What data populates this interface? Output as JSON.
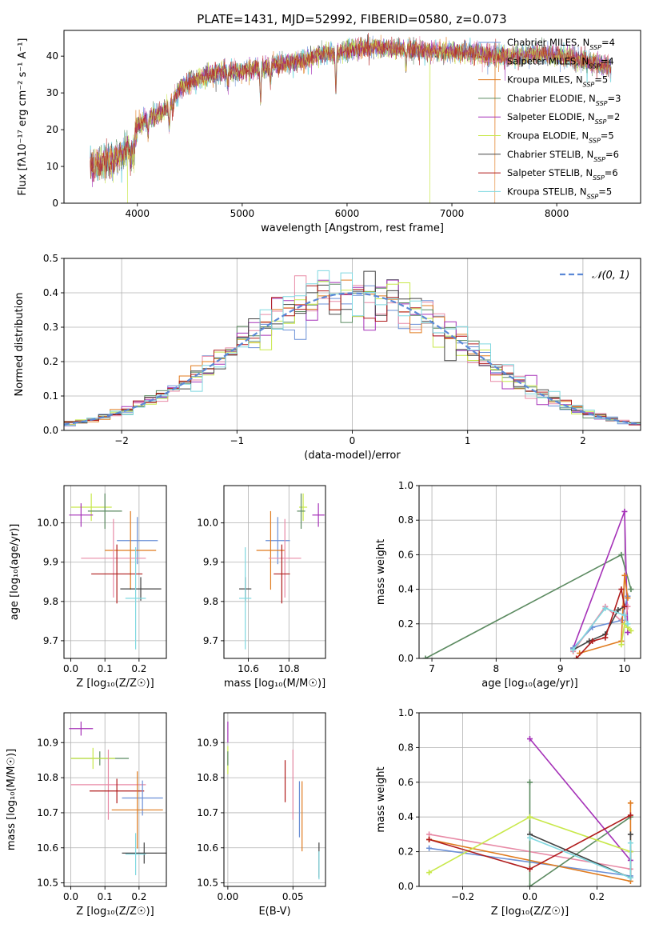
{
  "figure_title": "PLATE=1431, MJD=52992, FIBERID=0580, z=0.073",
  "colors": {
    "Chabrier MILES": "#6a8fd6",
    "Salpeter MILES": "#e88aa6",
    "Kroupa MILES": "#e07b1f",
    "Chabrier ELODIE": "#5b8a60",
    "Salpeter ELODIE": "#a531b8",
    "Kroupa ELODIE": "#c8e84a",
    "Chabrier STELIB": "#444444",
    "Salpeter STELIB": "#b01c1c",
    "Kroupa STELIB": "#7fd8e0",
    "normal_curve": "#5b88d6",
    "grid": "#b0b0b0"
  },
  "chart_data": [
    {
      "id": "spectrum",
      "type": "line",
      "title": "PLATE=1431, MJD=52992, FIBERID=0580, z=0.073",
      "xlabel": "wavelength [Angstrom, rest frame]",
      "ylabel": "Flux [fλ10⁻¹⁷ erg cm⁻² s⁻¹ A⁻¹]",
      "xlim": [
        3300,
        8800
      ],
      "ylim": [
        0,
        47
      ],
      "xticks": [
        4000,
        5000,
        6000,
        7000,
        8000
      ],
      "yticks": [
        0,
        10,
        20,
        30,
        40
      ],
      "grid": false,
      "legend_position": "top-right",
      "legend": [
        {
          "name": "Chabrier MILES",
          "nssp": "4"
        },
        {
          "name": "Salpeter MILES",
          "nssp": "4"
        },
        {
          "name": "Kroupa MILES",
          "nssp": "5"
        },
        {
          "name": "Chabrier ELODIE",
          "nssp": "3"
        },
        {
          "name": "Salpeter ELODIE",
          "nssp": "2"
        },
        {
          "name": "Kroupa ELODIE",
          "nssp": "5"
        },
        {
          "name": "Chabrier STELIB",
          "nssp": "6"
        },
        {
          "name": "Salpeter STELIB",
          "nssp": "6"
        },
        {
          "name": "Kroupa STELIB",
          "nssp": "5"
        }
      ],
      "continuum": [
        [
          3550,
          10
        ],
        [
          3700,
          11
        ],
        [
          3850,
          13
        ],
        [
          3950,
          15
        ],
        [
          4000,
          21
        ],
        [
          4100,
          23
        ],
        [
          4200,
          24
        ],
        [
          4300,
          26
        ],
        [
          4400,
          31
        ],
        [
          4500,
          33
        ],
        [
          4600,
          34
        ],
        [
          4700,
          35
        ],
        [
          4800,
          35.5
        ],
        [
          4900,
          36
        ],
        [
          5000,
          36
        ],
        [
          5100,
          36.5
        ],
        [
          5200,
          37
        ],
        [
          5300,
          37.5
        ],
        [
          5400,
          38
        ],
        [
          5500,
          38.5
        ],
        [
          5600,
          39
        ],
        [
          5700,
          40
        ],
        [
          5800,
          41
        ],
        [
          5900,
          41
        ],
        [
          6000,
          41.5
        ],
        [
          6100,
          42
        ],
        [
          6200,
          42
        ],
        [
          6300,
          42.5
        ],
        [
          6400,
          42
        ],
        [
          6500,
          42
        ],
        [
          6600,
          42
        ],
        [
          6700,
          41.5
        ],
        [
          6800,
          41.5
        ],
        [
          6900,
          41
        ],
        [
          7000,
          41
        ],
        [
          7100,
          41
        ],
        [
          7200,
          41
        ],
        [
          7300,
          40.5
        ],
        [
          7400,
          40
        ],
        [
          7500,
          40
        ],
        [
          7600,
          40
        ],
        [
          7700,
          40
        ],
        [
          7800,
          40.5
        ],
        [
          7900,
          40.5
        ],
        [
          8000,
          40
        ],
        [
          8100,
          40
        ],
        [
          8200,
          39
        ],
        [
          8300,
          38.5
        ],
        [
          8400,
          38
        ],
        [
          8500,
          37
        ]
      ],
      "dips": [
        [
          3934,
          4
        ],
        [
          3969,
          4
        ],
        [
          4102,
          3
        ],
        [
          4304,
          5
        ],
        [
          4341,
          3
        ],
        [
          4861,
          4
        ],
        [
          5175,
          9
        ],
        [
          5270,
          4
        ],
        [
          5893,
          10
        ],
        [
          6563,
          5
        ]
      ],
      "drops": [
        {
          "x": 3905,
          "to": 0,
          "series": "Kroupa ELODIE"
        },
        {
          "x": 6790,
          "to": 0,
          "series": "Kroupa ELODIE"
        },
        {
          "x": 7410,
          "to": 0,
          "series": "Kroupa MILES"
        }
      ],
      "spike": {
        "x": 6700,
        "to": 47
      }
    },
    {
      "id": "residuals",
      "type": "histogram",
      "xlabel": "(data-model)/error",
      "ylabel": "Normed distribution",
      "xlim": [
        -2.5,
        2.5
      ],
      "ylim": [
        0,
        0.5
      ],
      "xticks": [
        -2,
        -1,
        0,
        1,
        2
      ],
      "yticks": [
        0,
        0.1,
        0.2,
        0.3,
        0.4,
        0.5
      ],
      "bin_width": 0.1,
      "grid": true,
      "legend_position": "top-right",
      "legend": [
        {
          "name": "𝒩(0, 1)"
        }
      ],
      "reference_curve": {
        "type": "normal",
        "mean": 0,
        "std": 1
      }
    },
    {
      "id": "age_vs_Z",
      "type": "errorbar",
      "xlabel": "Z [log₁₀(Z/Z☉)]",
      "ylabel": "age [log₁₀(age/yr)]",
      "xlim": [
        -0.02,
        0.28
      ],
      "ylim": [
        9.655,
        10.095
      ],
      "xticks": [
        0.0,
        0.1,
        0.2
      ],
      "yticks": [
        9.7,
        9.8,
        9.9,
        10.0
      ],
      "grid": true,
      "points": [
        {
          "series": "Kroupa ELODIE",
          "x": 0.06,
          "xerr": 0.06,
          "y": 10.04,
          "yerr": 0.035
        },
        {
          "series": "Chabrier ELODIE",
          "x": 0.1,
          "xerr": 0.05,
          "y": 10.03,
          "yerr": 0.045
        },
        {
          "series": "Salpeter ELODIE",
          "x": 0.03,
          "xerr": 0.035,
          "y": 10.02,
          "yerr": 0.03
        },
        {
          "series": "Chabrier MILES",
          "x": 0.195,
          "xerr": 0.06,
          "y": 9.955,
          "yerr": 0.06
        },
        {
          "series": "Kroupa MILES",
          "x": 0.175,
          "xerr": 0.075,
          "y": 9.93,
          "yerr": 0.1
        },
        {
          "series": "Salpeter MILES",
          "x": 0.125,
          "xerr": 0.095,
          "y": 9.91,
          "yerr": 0.1
        },
        {
          "series": "Salpeter STELIB",
          "x": 0.135,
          "xerr": 0.075,
          "y": 9.87,
          "yerr": 0.075
        },
        {
          "series": "Chabrier STELIB",
          "x": 0.205,
          "xerr": 0.06,
          "y": 9.832,
          "yerr": 0.03
        },
        {
          "series": "Kroupa STELIB",
          "x": 0.19,
          "xerr": 0.03,
          "y": 9.808,
          "yerr": 0.13
        }
      ]
    },
    {
      "id": "age_vs_mass",
      "type": "errorbar",
      "xlabel": "mass [log₁₀(M/M☉)]",
      "xlim": [
        10.48,
        10.98
      ],
      "ylim": [
        9.655,
        10.095
      ],
      "xticks": [
        10.6,
        10.8
      ],
      "yticks": [
        9.7,
        9.8,
        9.9,
        10.0
      ],
      "grid": true,
      "points": [
        {
          "series": "Kroupa ELODIE",
          "x": 10.87,
          "xerr": 0.02,
          "y": 10.04,
          "yerr": 0.035
        },
        {
          "series": "Chabrier ELODIE",
          "x": 10.86,
          "xerr": 0.02,
          "y": 10.03,
          "yerr": 0.045
        },
        {
          "series": "Salpeter ELODIE",
          "x": 10.945,
          "xerr": 0.03,
          "y": 10.02,
          "yerr": 0.03
        },
        {
          "series": "Chabrier MILES",
          "x": 10.745,
          "xerr": 0.06,
          "y": 9.955,
          "yerr": 0.06
        },
        {
          "series": "Kroupa MILES",
          "x": 10.71,
          "xerr": 0.07,
          "y": 9.93,
          "yerr": 0.1
        },
        {
          "series": "Salpeter MILES",
          "x": 10.78,
          "xerr": 0.08,
          "y": 9.91,
          "yerr": 0.1
        },
        {
          "series": "Salpeter STELIB",
          "x": 10.765,
          "xerr": 0.04,
          "y": 9.87,
          "yerr": 0.075
        },
        {
          "series": "Chabrier STELIB",
          "x": 10.585,
          "xerr": 0.03,
          "y": 9.832,
          "yerr": 0.03
        },
        {
          "series": "Kroupa STELIB",
          "x": 10.585,
          "xerr": 0.03,
          "y": 9.808,
          "yerr": 0.13
        }
      ]
    },
    {
      "id": "weight_vs_age",
      "type": "line",
      "xlabel": "age [log₁₀(age/yr)]",
      "ylabel": "mass weight",
      "xlim": [
        6.8,
        10.25
      ],
      "ylim": [
        0,
        1
      ],
      "xticks": [
        7,
        8,
        9,
        10
      ],
      "yticks": [
        0,
        0.2,
        0.4,
        0.6,
        0.8,
        1.0
      ],
      "grid": true,
      "series": [
        {
          "name": "Chabrier ELODIE",
          "x": [
            6.9,
            9.95,
            10.1
          ],
          "y": [
            0.0,
            0.6,
            0.4
          ]
        },
        {
          "name": "Salpeter ELODIE",
          "x": [
            9.2,
            10.0,
            10.05
          ],
          "y": [
            0.06,
            0.85,
            0.15
          ]
        },
        {
          "name": "Chabrier MILES",
          "x": [
            9.2,
            9.5,
            9.95,
            10.05
          ],
          "y": [
            0.06,
            0.18,
            0.22,
            0.36
          ]
        },
        {
          "name": "Salpeter MILES",
          "x": [
            9.2,
            9.7,
            10.0,
            10.05
          ],
          "y": [
            0.04,
            0.3,
            0.2,
            0.3
          ]
        },
        {
          "name": "Kroupa MILES",
          "x": [
            9.3,
            9.95,
            10.0,
            10.05
          ],
          "y": [
            0.03,
            0.1,
            0.48,
            0.35
          ]
        },
        {
          "name": "Kroupa ELODIE",
          "x": [
            9.95,
            10.0,
            10.05,
            10.1
          ],
          "y": [
            0.08,
            0.2,
            0.18,
            0.16
          ]
        },
        {
          "name": "Chabrier STELIB",
          "x": [
            9.2,
            9.45,
            9.7,
            9.9,
            10.0
          ],
          "y": [
            0.05,
            0.1,
            0.14,
            0.28,
            0.3
          ]
        },
        {
          "name": "Salpeter STELIB",
          "x": [
            9.25,
            9.5,
            9.7,
            9.95,
            10.0
          ],
          "y": [
            0.0,
            0.1,
            0.12,
            0.4,
            0.3
          ]
        },
        {
          "name": "Kroupa STELIB",
          "x": [
            9.2,
            9.7,
            10.0,
            10.05
          ],
          "y": [
            0.05,
            0.29,
            0.25,
            0.2
          ]
        }
      ]
    },
    {
      "id": "mass_vs_Z",
      "type": "errorbar",
      "xlabel": "Z [log₁₀(Z/Z☉)]",
      "ylabel": "mass [log₁₀(M/M☉)]",
      "xlim": [
        -0.02,
        0.28
      ],
      "ylim": [
        10.49,
        10.985
      ],
      "xticks": [
        0.0,
        0.1,
        0.2
      ],
      "yticks": [
        10.5,
        10.6,
        10.7,
        10.8,
        10.9
      ],
      "grid": true,
      "points": [
        {
          "series": "Salpeter ELODIE",
          "x": 0.03,
          "xerr": 0.035,
          "y": 10.94,
          "yerr": 0.02
        },
        {
          "series": "Chabrier ELODIE",
          "x": 0.085,
          "xerr": 0.085,
          "y": 10.855,
          "yerr": 0.02
        },
        {
          "series": "Kroupa ELODIE",
          "x": 0.065,
          "xerr": 0.065,
          "y": 10.855,
          "yerr": 0.03
        },
        {
          "series": "Salpeter MILES",
          "x": 0.11,
          "xerr": 0.11,
          "y": 10.78,
          "yerr": 0.1
        },
        {
          "series": "Salpeter STELIB",
          "x": 0.135,
          "xerr": 0.08,
          "y": 10.762,
          "yerr": 0.035
        },
        {
          "series": "Chabrier MILES",
          "x": 0.21,
          "xerr": 0.06,
          "y": 10.742,
          "yerr": 0.05
        },
        {
          "series": "Kroupa MILES",
          "x": 0.195,
          "xerr": 0.075,
          "y": 10.708,
          "yerr": 0.11
        },
        {
          "series": "Chabrier STELIB",
          "x": 0.215,
          "xerr": 0.065,
          "y": 10.585,
          "yerr": 0.03
        },
        {
          "series": "Kroupa STELIB",
          "x": 0.19,
          "xerr": 0.03,
          "y": 10.582,
          "yerr": 0.06
        }
      ]
    },
    {
      "id": "mass_vs_ebv",
      "type": "errorbar",
      "xlabel": "E(B-V)",
      "xlim": [
        -0.003,
        0.075
      ],
      "ylim": [
        10.49,
        10.985
      ],
      "xticks": [
        0.0,
        0.05
      ],
      "yticks": [
        10.5,
        10.6,
        10.7,
        10.8,
        10.9
      ],
      "grid": true,
      "points": [
        {
          "series": "Salpeter ELODIE",
          "x": 0.0,
          "xerr": 0,
          "y": 10.93,
          "yerr": 0.03
        },
        {
          "series": "Kroupa ELODIE",
          "x": 0.0,
          "xerr": 0,
          "y": 10.85,
          "yerr": 0.04
        },
        {
          "series": "Chabrier ELODIE",
          "x": 0.0,
          "xerr": 0,
          "y": 10.855,
          "yerr": 0.02
        },
        {
          "series": "Salpeter MILES",
          "x": 0.05,
          "xerr": 0,
          "y": 10.78,
          "yerr": 0.1
        },
        {
          "series": "Salpeter STELIB",
          "x": 0.044,
          "xerr": 0,
          "y": 10.79,
          "yerr": 0.06
        },
        {
          "series": "Chabrier MILES",
          "x": 0.055,
          "xerr": 0,
          "y": 10.71,
          "yerr": 0.08
        },
        {
          "series": "Kroupa MILES",
          "x": 0.057,
          "xerr": 0,
          "y": 10.69,
          "yerr": 0.1
        },
        {
          "series": "Chabrier STELIB",
          "x": 0.07,
          "xerr": 0,
          "y": 10.565,
          "yerr": 0.05
        },
        {
          "series": "Kroupa STELIB",
          "x": 0.07,
          "xerr": 0,
          "y": 10.55,
          "yerr": 0.04
        }
      ]
    },
    {
      "id": "weight_vs_Z",
      "type": "line",
      "xlabel": "Z [log₁₀(Z/Z☉)]",
      "ylabel": "mass weight",
      "xlim": [
        -0.33,
        0.33
      ],
      "ylim": [
        0,
        1
      ],
      "xticks": [
        -0.2,
        0.0,
        0.2
      ],
      "yticks": [
        0,
        0.2,
        0.4,
        0.6,
        0.8,
        1.0
      ],
      "grid": true,
      "series": [
        {
          "name": "Chabrier MILES",
          "x": [
            -0.3,
            0.3,
            0.3
          ],
          "y": [
            0.22,
            0.06,
            0.2
          ]
        },
        {
          "name": "Salpeter MILES",
          "x": [
            -0.3,
            0.3,
            0.3
          ],
          "y": [
            0.3,
            0.1,
            0.2
          ]
        },
        {
          "name": "Kroupa MILES",
          "x": [
            -0.3,
            0.3,
            0.3
          ],
          "y": [
            0.27,
            0.03,
            0.48
          ]
        },
        {
          "name": "Chabrier ELODIE",
          "x": [
            0.0,
            0.0,
            0.3
          ],
          "y": [
            0.6,
            0.0,
            0.4
          ]
        },
        {
          "name": "Salpeter ELODIE",
          "x": [
            0.0,
            0.3
          ],
          "y": [
            0.85,
            0.15
          ]
        },
        {
          "name": "Kroupa ELODIE",
          "x": [
            -0.3,
            0.0,
            0.3
          ],
          "y": [
            0.08,
            0.4,
            0.2
          ]
        },
        {
          "name": "Chabrier STELIB",
          "x": [
            0.0,
            0.3,
            0.3
          ],
          "y": [
            0.3,
            0.05,
            0.3
          ]
        },
        {
          "name": "Salpeter STELIB",
          "x": [
            -0.3,
            0.0,
            0.3
          ],
          "y": [
            0.27,
            0.1,
            0.41
          ]
        },
        {
          "name": "Kroupa STELIB",
          "x": [
            0.0,
            0.3,
            0.3
          ],
          "y": [
            0.28,
            0.05,
            0.25
          ]
        }
      ]
    }
  ]
}
